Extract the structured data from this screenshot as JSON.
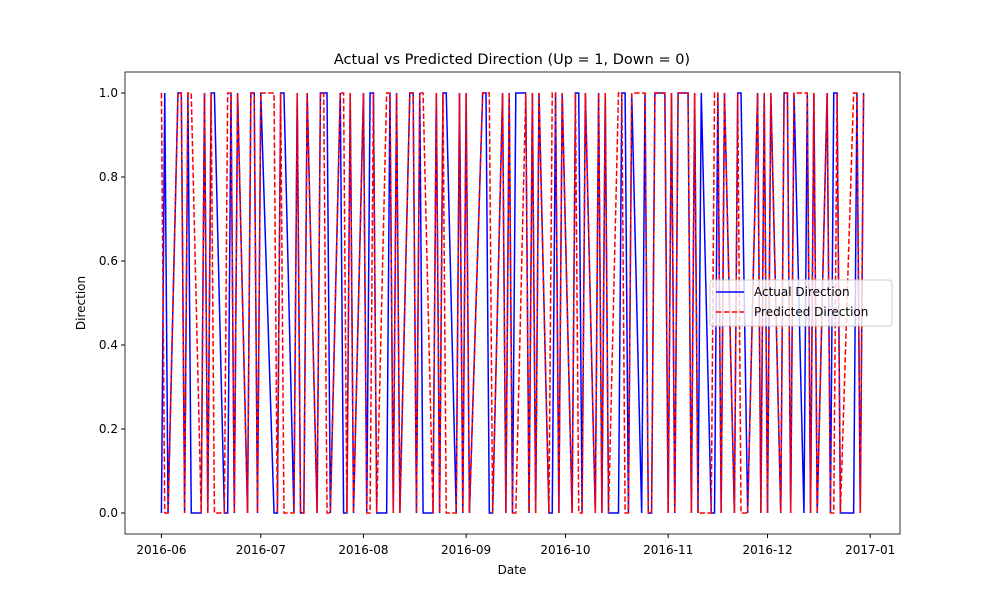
{
  "chart_data": {
    "type": "line",
    "title": "Actual vs Predicted Direction (Up = 1, Down = 0)",
    "x_label": "Date",
    "y_label": "Direction",
    "x": [
      "2016-06-01",
      "2016-06-02",
      "2016-06-03",
      "2016-06-06",
      "2016-06-07",
      "2016-06-08",
      "2016-06-09",
      "2016-06-10",
      "2016-06-13",
      "2016-06-14",
      "2016-06-15",
      "2016-06-16",
      "2016-06-17",
      "2016-06-20",
      "2016-06-21",
      "2016-06-22",
      "2016-06-23",
      "2016-06-24",
      "2016-06-27",
      "2016-06-28",
      "2016-06-29",
      "2016-06-30",
      "2016-07-01",
      "2016-07-05",
      "2016-07-06",
      "2016-07-07",
      "2016-07-08",
      "2016-07-11",
      "2016-07-12",
      "2016-07-13",
      "2016-07-14",
      "2016-07-15",
      "2016-07-18",
      "2016-07-19",
      "2016-07-20",
      "2016-07-21",
      "2016-07-22",
      "2016-07-25",
      "2016-07-26",
      "2016-07-27",
      "2016-07-28",
      "2016-07-29",
      "2016-08-01",
      "2016-08-02",
      "2016-08-03",
      "2016-08-04",
      "2016-08-05",
      "2016-08-08",
      "2016-08-09",
      "2016-08-10",
      "2016-08-11",
      "2016-08-12",
      "2016-08-15",
      "2016-08-16",
      "2016-08-17",
      "2016-08-18",
      "2016-08-19",
      "2016-08-22",
      "2016-08-23",
      "2016-08-24",
      "2016-08-25",
      "2016-08-26",
      "2016-08-29",
      "2016-08-30",
      "2016-08-31",
      "2016-09-01",
      "2016-09-02",
      "2016-09-06",
      "2016-09-07",
      "2016-09-08",
      "2016-09-09",
      "2016-09-12",
      "2016-09-13",
      "2016-09-14",
      "2016-09-15",
      "2016-09-16",
      "2016-09-19",
      "2016-09-20",
      "2016-09-21",
      "2016-09-22",
      "2016-09-23",
      "2016-09-26",
      "2016-09-27",
      "2016-09-28",
      "2016-09-29",
      "2016-09-30",
      "2016-10-03",
      "2016-10-04",
      "2016-10-05",
      "2016-10-06",
      "2016-10-07",
      "2016-10-10",
      "2016-10-11",
      "2016-10-12",
      "2016-10-13",
      "2016-10-14",
      "2016-10-17",
      "2016-10-18",
      "2016-10-19",
      "2016-10-20",
      "2016-10-21",
      "2016-10-24",
      "2016-10-25",
      "2016-10-26",
      "2016-10-27",
      "2016-10-28",
      "2016-10-31",
      "2016-11-01",
      "2016-11-02",
      "2016-11-03",
      "2016-11-04",
      "2016-11-07",
      "2016-11-08",
      "2016-11-09",
      "2016-11-10",
      "2016-11-11",
      "2016-11-14",
      "2016-11-15",
      "2016-11-16",
      "2016-11-17",
      "2016-11-18",
      "2016-11-21",
      "2016-11-22",
      "2016-11-23",
      "2016-11-25",
      "2016-11-28",
      "2016-11-29",
      "2016-11-30",
      "2016-12-01",
      "2016-12-02",
      "2016-12-05",
      "2016-12-06",
      "2016-12-07",
      "2016-12-08",
      "2016-12-09",
      "2016-12-12",
      "2016-12-13",
      "2016-12-14",
      "2016-12-15",
      "2016-12-16",
      "2016-12-19",
      "2016-12-20",
      "2016-12-21",
      "2016-12-22",
      "2016-12-23",
      "2016-12-27",
      "2016-12-28",
      "2016-12-29",
      "2016-12-30"
    ],
    "series": [
      {
        "name": "Actual Direction",
        "color": "#0000ff",
        "dash": "solid",
        "values": [
          0,
          1,
          0,
          1,
          1,
          0,
          1,
          0,
          0,
          1,
          0,
          1,
          1,
          0,
          0,
          1,
          0,
          1,
          0,
          1,
          1,
          0,
          1,
          0,
          0,
          1,
          1,
          0,
          1,
          0,
          0,
          1,
          0,
          1,
          1,
          1,
          0,
          1,
          0,
          0,
          1,
          0,
          1,
          0,
          1,
          1,
          0,
          0,
          1,
          0,
          1,
          0,
          1,
          1,
          0,
          1,
          0,
          0,
          1,
          0,
          1,
          1,
          0,
          1,
          0,
          1,
          0,
          1,
          1,
          0,
          0,
          1,
          0,
          1,
          0,
          1,
          1,
          0,
          1,
          0,
          1,
          0,
          0,
          1,
          0,
          1,
          0,
          1,
          1,
          0,
          1,
          0,
          1,
          0,
          1,
          0,
          0,
          1,
          1,
          0,
          1,
          0,
          1,
          0,
          0,
          1,
          1,
          0,
          1,
          0,
          1,
          1,
          0,
          1,
          0,
          1,
          0,
          0,
          1,
          0,
          1,
          0,
          1,
          1,
          0,
          1,
          0,
          1,
          0,
          1,
          0,
          1,
          1,
          0,
          1,
          0,
          1,
          0,
          1,
          0,
          1,
          0,
          1,
          1,
          0,
          0,
          1,
          0,
          1
        ]
      },
      {
        "name": "Predicted Direction",
        "color": "#ff0000",
        "dash": "dashed",
        "values": [
          1,
          0,
          0,
          1,
          1,
          0,
          1,
          1,
          0,
          1,
          0,
          1,
          0,
          0,
          1,
          1,
          0,
          1,
          0,
          1,
          1,
          0,
          1,
          1,
          0,
          1,
          0,
          0,
          1,
          0,
          0,
          1,
          0,
          1,
          1,
          0,
          0,
          1,
          1,
          0,
          1,
          0,
          1,
          0,
          0,
          1,
          0,
          1,
          1,
          0,
          1,
          0,
          1,
          1,
          0,
          1,
          1,
          0,
          1,
          0,
          1,
          0,
          0,
          1,
          0,
          1,
          0,
          1,
          1,
          1,
          0,
          1,
          0,
          1,
          0,
          0,
          1,
          0,
          1,
          0,
          1,
          0,
          1,
          1,
          0,
          1,
          0,
          1,
          0,
          0,
          1,
          0,
          1,
          0,
          1,
          0,
          1,
          1,
          0,
          0,
          1,
          1,
          1,
          0,
          0,
          1,
          1,
          0,
          1,
          0,
          1,
          1,
          0,
          1,
          0,
          0,
          0,
          1,
          1,
          0,
          1,
          0,
          1,
          0,
          0,
          1,
          0,
          1,
          0,
          1,
          0,
          1,
          1,
          0,
          1,
          1,
          1,
          0,
          1,
          0,
          1,
          0,
          0,
          1,
          0,
          1,
          1,
          0,
          1
        ]
      }
    ],
    "xlim": [
      "2016-05-21",
      "2017-01-10"
    ],
    "xticks": [
      {
        "value": "2016-06-01",
        "label": "2016-06"
      },
      {
        "value": "2016-07-01",
        "label": "2016-07"
      },
      {
        "value": "2016-08-01",
        "label": "2016-08"
      },
      {
        "value": "2016-09-01",
        "label": "2016-09"
      },
      {
        "value": "2016-10-01",
        "label": "2016-10"
      },
      {
        "value": "2016-11-01",
        "label": "2016-11"
      },
      {
        "value": "2016-12-01",
        "label": "2016-12"
      },
      {
        "value": "2017-01-01",
        "label": "2017-01"
      }
    ],
    "ylim": [
      -0.05,
      1.05
    ],
    "yticks": [
      {
        "value": 0,
        "label": "0.0"
      },
      {
        "value": 0.2,
        "label": "0.2"
      },
      {
        "value": 0.4,
        "label": "0.4"
      },
      {
        "value": 0.6,
        "label": "0.6"
      },
      {
        "value": 0.8,
        "label": "0.8"
      },
      {
        "value": 1,
        "label": "1.0"
      }
    ],
    "legend": "center right"
  }
}
